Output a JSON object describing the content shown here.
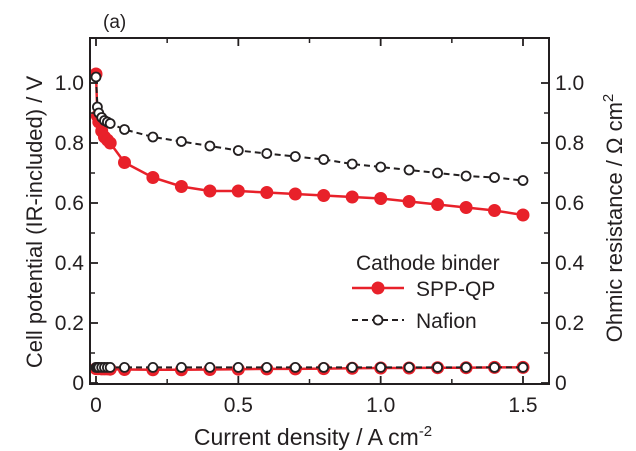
{
  "chart_data": {
    "type": "line",
    "panel_label": "(a)",
    "xlabel": "Current density / A cm",
    "xlabel_sup": "-2",
    "ylabel_left": "Cell potential (IR-included) / V",
    "ylabel_right": "Ohmic resistance / Ω cm",
    "ylabel_right_sup": "2",
    "xlim": [
      0,
      1.5
    ],
    "ylim_left": [
      0,
      1.0
    ],
    "ylim_right": [
      0,
      1.0
    ],
    "x_ticks": [
      "0",
      "0.5",
      "1.0",
      "1.5"
    ],
    "y_ticks": [
      "0",
      "0.2",
      "0.4",
      "0.6",
      "0.8",
      "1.0"
    ],
    "x_tick_values": [
      0,
      0.5,
      1.0,
      1.5
    ],
    "y_tick_values": [
      0,
      0.2,
      0.4,
      0.6,
      0.8,
      1.0
    ],
    "legend": {
      "title": "Cathode binder",
      "placement": "center-right"
    },
    "series": [
      {
        "name": "SPP-QP",
        "role": "cell-potential",
        "color": "#e8212a",
        "marker": "filled-circle",
        "line": "solid",
        "x": [
          0,
          0.005,
          0.01,
          0.02,
          0.03,
          0.04,
          0.05,
          0.1,
          0.2,
          0.3,
          0.4,
          0.5,
          0.6,
          0.7,
          0.8,
          0.9,
          1.0,
          1.1,
          1.2,
          1.3,
          1.4,
          1.5
        ],
        "y": [
          1.03,
          0.89,
          0.87,
          0.84,
          0.82,
          0.81,
          0.8,
          0.735,
          0.685,
          0.655,
          0.64,
          0.64,
          0.635,
          0.63,
          0.625,
          0.62,
          0.615,
          0.605,
          0.595,
          0.585,
          0.575,
          0.56
        ]
      },
      {
        "name": "Nafion",
        "role": "cell-potential",
        "color": "#231f20",
        "marker": "open-circle",
        "line": "dashed",
        "x": [
          0,
          0.005,
          0.01,
          0.02,
          0.03,
          0.04,
          0.05,
          0.1,
          0.2,
          0.3,
          0.4,
          0.5,
          0.6,
          0.7,
          0.8,
          0.9,
          1.0,
          1.1,
          1.2,
          1.3,
          1.4,
          1.5
        ],
        "y": [
          1.02,
          0.92,
          0.9,
          0.885,
          0.875,
          0.87,
          0.865,
          0.845,
          0.82,
          0.805,
          0.79,
          0.775,
          0.765,
          0.755,
          0.745,
          0.73,
          0.72,
          0.71,
          0.7,
          0.69,
          0.685,
          0.675
        ]
      },
      {
        "name": "SPP-QP",
        "role": "ohmic-resistance",
        "color": "#e8212a",
        "marker": "filled-circle",
        "line": "solid",
        "x": [
          0,
          0.005,
          0.01,
          0.02,
          0.03,
          0.04,
          0.05,
          0.1,
          0.2,
          0.3,
          0.4,
          0.5,
          0.6,
          0.7,
          0.8,
          0.9,
          1.0,
          1.1,
          1.2,
          1.3,
          1.4,
          1.5
        ],
        "y": [
          0.048,
          0.048,
          0.048,
          0.047,
          0.047,
          0.047,
          0.046,
          0.045,
          0.044,
          0.044,
          0.045,
          0.046,
          0.047,
          0.047,
          0.048,
          0.049,
          0.05,
          0.05,
          0.051,
          0.051,
          0.052,
          0.052
        ]
      },
      {
        "name": "Nafion",
        "role": "ohmic-resistance",
        "color": "#231f20",
        "marker": "open-circle",
        "line": "dashed",
        "x": [
          0,
          0.005,
          0.01,
          0.02,
          0.03,
          0.04,
          0.05,
          0.1,
          0.2,
          0.3,
          0.4,
          0.5,
          0.6,
          0.7,
          0.8,
          0.9,
          1.0,
          1.1,
          1.2,
          1.3,
          1.4,
          1.5
        ],
        "y": [
          0.052,
          0.052,
          0.052,
          0.052,
          0.052,
          0.052,
          0.052,
          0.052,
          0.052,
          0.052,
          0.052,
          0.052,
          0.052,
          0.052,
          0.052,
          0.052,
          0.052,
          0.052,
          0.052,
          0.052,
          0.052,
          0.052
        ]
      }
    ]
  }
}
